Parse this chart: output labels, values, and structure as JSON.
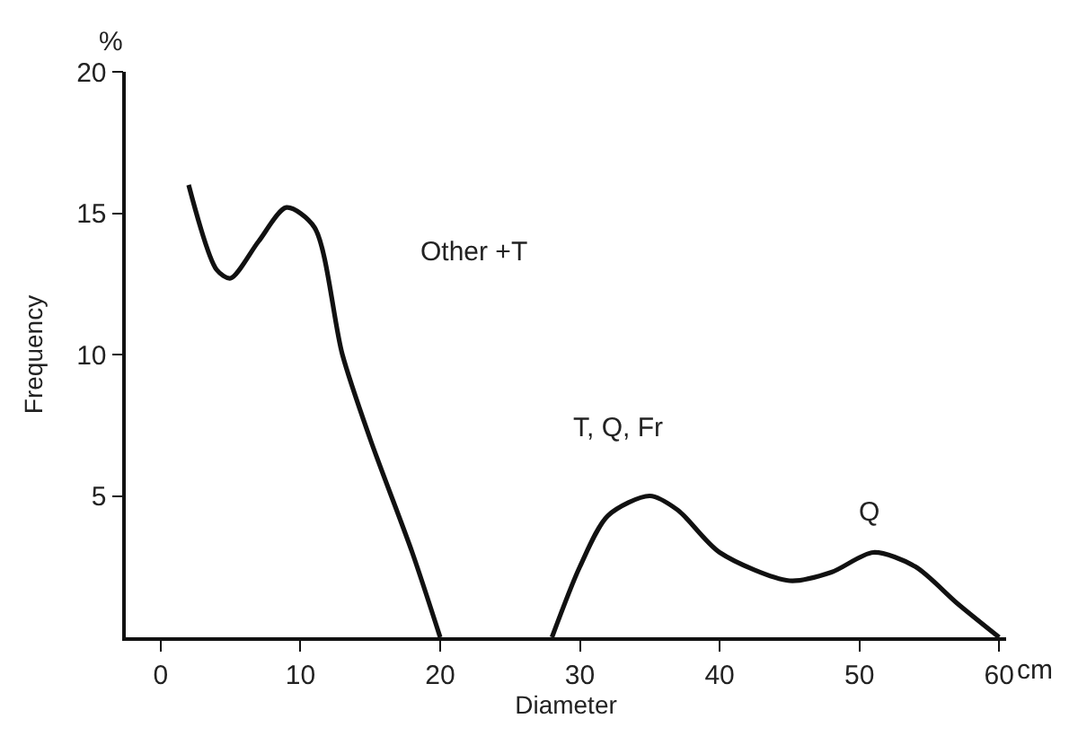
{
  "chart_data": {
    "type": "line",
    "xlabel": "Diameter",
    "ylabel": "Frequency",
    "xlim": [
      -2.5,
      60.5
    ],
    "xticks": [
      0,
      10,
      20,
      30,
      40,
      50,
      60
    ],
    "ylim": [
      0,
      20
    ],
    "yticks": [
      5,
      10,
      15,
      20
    ],
    "marker": "none",
    "line_style": "solid",
    "series": [
      {
        "color": "#111111",
        "x": [
          2,
          4,
          5,
          7,
          9,
          11,
          13,
          15,
          18,
          20
        ],
        "values": [
          16,
          13,
          12.7,
          14,
          15.2,
          14.5,
          10,
          7,
          3,
          0
        ]
      },
      {
        "color": "#111111",
        "x": [
          28,
          30,
          32,
          35,
          37,
          40,
          45,
          48,
          51,
          54,
          57,
          60
        ],
        "values": [
          0,
          2.5,
          4.3,
          5,
          4.5,
          3,
          2,
          2.3,
          3,
          2.5,
          1.2,
          0
        ]
      }
    ],
    "annotations": [
      "Other +T",
      "T, Q, Fr",
      "Q",
      "%",
      "cm"
    ]
  }
}
